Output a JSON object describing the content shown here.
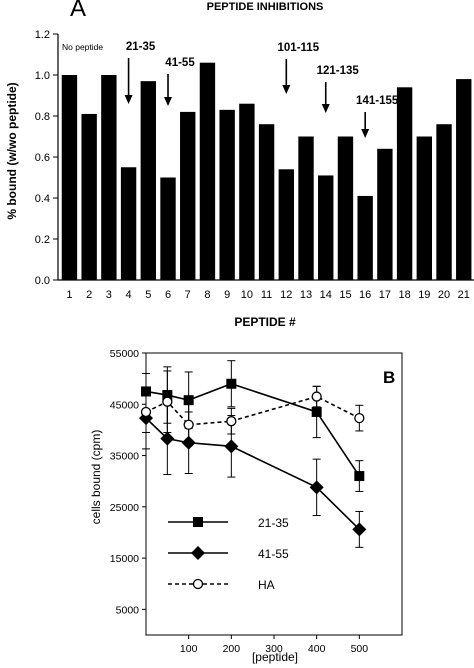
{
  "panel_a": {
    "panel_letter": "A",
    "title": "PEPTIDE  INHIBITIONS",
    "ylabel": "% bound (w/wo peptide)",
    "xlabel": "PEPTIDE  #",
    "first_bar_note": "No peptide",
    "annotations": [
      {
        "text": "21-35",
        "bar": "4"
      },
      {
        "text": "41-55",
        "bar": "6"
      },
      {
        "text": "101-115",
        "bar": "12"
      },
      {
        "text": "121-135",
        "bar": "14"
      },
      {
        "text": "141-155",
        "bar": "16"
      }
    ]
  },
  "panel_b": {
    "panel_letter": "B",
    "xlabel": "[peptide]",
    "ylabel": "cells bound (cpm)",
    "legend": [
      {
        "label": "21-35",
        "series": 0
      },
      {
        "label": "41-55",
        "series": 1
      },
      {
        "label": "HA",
        "series": 2
      }
    ]
  },
  "chart_data": [
    {
      "type": "bar",
      "title": "PEPTIDE  INHIBITIONS",
      "xlabel": "PEPTIDE  #",
      "ylabel": "% bound (w/wo peptide)",
      "categories": [
        "1",
        "2",
        "3",
        "4",
        "5",
        "6",
        "7",
        "8",
        "9",
        "10",
        "11",
        "12",
        "13",
        "14",
        "15",
        "16",
        "17",
        "18",
        "19",
        "20",
        "21"
      ],
      "values": [
        1.0,
        0.81,
        1.0,
        0.55,
        0.97,
        0.5,
        0.82,
        1.06,
        0.83,
        0.86,
        0.76,
        0.54,
        0.7,
        0.51,
        0.7,
        0.41,
        0.64,
        0.94,
        0.7,
        0.76,
        0.98
      ],
      "ylim": [
        0.0,
        1.2
      ],
      "yticks": [
        0.0,
        0.2,
        0.4,
        0.6,
        0.8,
        1.0,
        1.2
      ],
      "grid": false,
      "bar_color": "#000000"
    },
    {
      "type": "line",
      "xlabel": "[peptide]",
      "ylabel": "cells bound (cpm)",
      "xlim": [
        0,
        600
      ],
      "ylim": [
        0,
        55000
      ],
      "xticks": [
        100,
        200,
        300,
        400,
        500
      ],
      "yticks": [
        5000,
        15000,
        25000,
        35000,
        45000,
        55000
      ],
      "grid": false,
      "legend_position": "lower-left",
      "series": [
        {
          "name": "21-35",
          "marker": "filled-square",
          "line": "solid",
          "x": [
            0,
            50,
            100,
            200,
            400,
            500
          ],
          "y": [
            47500,
            46800,
            45800,
            49000,
            43500,
            31000
          ],
          "err": [
            3500,
            5500,
            5500,
            4500,
            5000,
            3000
          ]
        },
        {
          "name": "41-55",
          "marker": "filled-diamond",
          "line": "solid",
          "x": [
            0,
            50,
            100,
            200,
            400,
            500
          ],
          "y": [
            42300,
            38300,
            37500,
            36800,
            28800,
            20600
          ],
          "err": [
            6000,
            7000,
            6000,
            6000,
            5500,
            3500
          ]
        },
        {
          "name": "HA",
          "marker": "open-circle",
          "line": "dashed",
          "x": [
            0,
            50,
            100,
            200,
            400,
            500
          ],
          "y": [
            43500,
            45500,
            41000,
            41700,
            46500,
            42300
          ],
          "err": [
            4000,
            6000,
            4000,
            2500,
            2000,
            2500
          ]
        }
      ]
    }
  ]
}
